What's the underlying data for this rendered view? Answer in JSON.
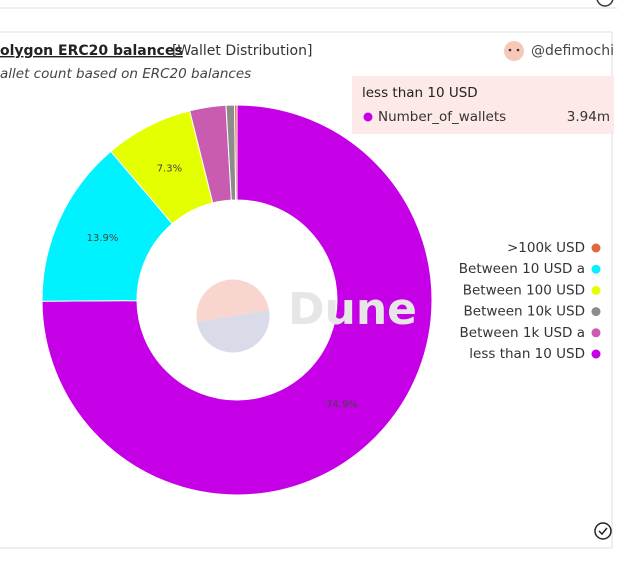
{
  "chart_data": {
    "type": "pie",
    "title": "olygon ERC20 balances",
    "tag": "[Wallet Distribution]",
    "subtitle": "allet count based on ERC20 balances",
    "author": "@defimochi",
    "watermark": "Dune",
    "categories": [
      "less than 10 USD",
      "Between 10 USD a",
      "Between 100 USD",
      "Between 1k USD a",
      "Between 10k USD",
      ">100k USD"
    ],
    "values": [
      74.9,
      13.9,
      7.3,
      3.0,
      0.7,
      0.2
    ],
    "value_labels": [
      "74.9%",
      "13.9%",
      "7.3%",
      null,
      null,
      null
    ],
    "colors": [
      "#c500e6",
      "#00f2ff",
      "#e3ff00",
      "#c95cb0",
      "#8c8c8c",
      "#e0673c"
    ],
    "tooltip": {
      "title": "less than 10 USD",
      "series": "Number_of_wallets",
      "value": "3.94m"
    }
  }
}
